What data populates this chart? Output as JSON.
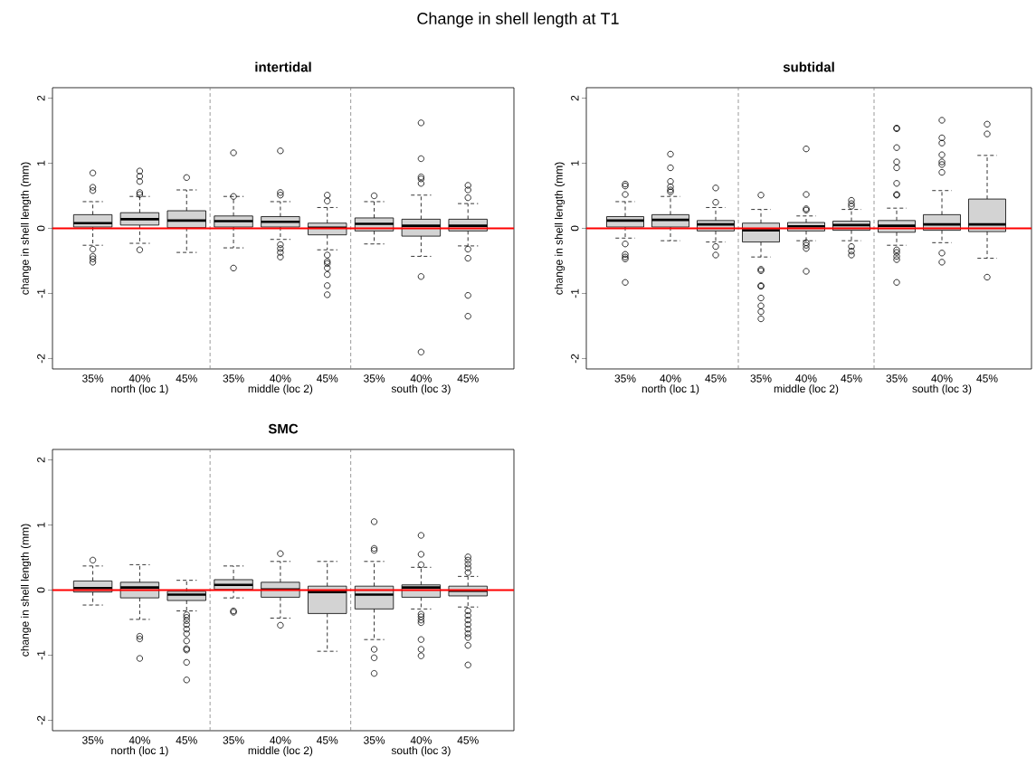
{
  "chart_data": [
    {
      "type": "box",
      "title": "intertidal",
      "ylabel": "change in shell length (mm)",
      "marker": "circle",
      "categories": [
        "35%",
        "40%",
        "45%",
        "35%",
        "40%",
        "45%",
        "35%",
        "40%",
        "45%"
      ],
      "ylim": [
        -2.16,
        2.16
      ],
      "yticks": [
        -2,
        -1,
        0,
        1,
        2
      ],
      "series": [
        {
          "color": "#d3d3d3",
          "boxes": [
            {
              "low": -0.26,
              "q1": 0.02,
              "median": 0.08,
              "q3": 0.21,
              "high": 0.41,
              "outliers": [
                0.85,
                0.63,
                0.58,
                -0.32,
                -0.43,
                -0.47,
                -0.52
              ]
            },
            {
              "low": -0.23,
              "q1": 0.05,
              "median": 0.14,
              "q3": 0.24,
              "high": 0.49,
              "outliers": [
                0.88,
                0.8,
                0.72,
                0.55,
                0.52,
                -0.33
              ]
            },
            {
              "low": -0.37,
              "q1": 0.01,
              "median": 0.12,
              "q3": 0.27,
              "high": 0.59,
              "outliers": [
                0.78
              ]
            },
            {
              "low": -0.3,
              "q1": 0.02,
              "median": 0.11,
              "q3": 0.19,
              "high": 0.49,
              "outliers": [
                1.16,
                0.49,
                -0.61
              ]
            },
            {
              "low": -0.17,
              "q1": 0.02,
              "median": 0.1,
              "q3": 0.18,
              "high": 0.41,
              "outliers": [
                1.19,
                0.55,
                0.51,
                -0.25,
                -0.31,
                -0.37,
                -0.44
              ]
            },
            {
              "low": -0.33,
              "q1": -0.1,
              "median": 0.01,
              "q3": 0.08,
              "high": 0.32,
              "outliers": [
                0.51,
                0.42,
                -0.41,
                -0.51,
                -0.54,
                -0.61,
                -0.71,
                -0.88,
                -1.02
              ]
            },
            {
              "low": -0.24,
              "q1": -0.04,
              "median": 0.07,
              "q3": 0.16,
              "high": 0.41,
              "outliers": [
                0.5
              ]
            },
            {
              "low": -0.43,
              "q1": -0.12,
              "median": 0.04,
              "q3": 0.14,
              "high": 0.51,
              "outliers": [
                1.62,
                1.07,
                0.79,
                0.76,
                0.69,
                -0.74,
                -1.9
              ]
            },
            {
              "low": -0.27,
              "q1": -0.04,
              "median": 0.04,
              "q3": 0.14,
              "high": 0.38,
              "outliers": [
                0.66,
                0.59,
                0.47,
                -0.32,
                -0.46,
                -1.03,
                -1.35
              ]
            }
          ]
        }
      ],
      "ref_lines": [
        {
          "axis": "y",
          "value": 0,
          "color": "#ff0000",
          "line_style": "solid"
        }
      ],
      "annotations": [
        "Change in shell length at T1",
        "north (loc 1)",
        "middle (loc 2)",
        "south (loc 3)"
      ]
    },
    {
      "type": "box",
      "title": "subtidal",
      "ylabel": "change in shell length (mm)",
      "marker": "circle",
      "categories": [
        "35%",
        "40%",
        "45%",
        "35%",
        "40%",
        "45%",
        "35%",
        "40%",
        "45%"
      ],
      "ylim": [
        -2.16,
        2.16
      ],
      "yticks": [
        -2,
        -1,
        0,
        1,
        2
      ],
      "series": [
        {
          "color": "#d3d3d3",
          "boxes": [
            {
              "low": -0.15,
              "q1": 0.02,
              "median": 0.12,
              "q3": 0.18,
              "high": 0.41,
              "outliers": [
                0.68,
                0.65,
                0.52,
                -0.24,
                -0.4,
                -0.44,
                -0.47,
                -0.83
              ]
            },
            {
              "low": -0.19,
              "q1": 0.02,
              "median": 0.13,
              "q3": 0.21,
              "high": 0.49,
              "outliers": [
                1.14,
                0.93,
                0.72,
                0.64,
                0.59,
                0.56
              ]
            },
            {
              "low": -0.21,
              "q1": -0.04,
              "median": 0.06,
              "q3": 0.12,
              "high": 0.32,
              "outliers": [
                0.62,
                0.4,
                -0.28,
                -0.41
              ]
            },
            {
              "low": -0.44,
              "q1": -0.21,
              "median": -0.03,
              "q3": 0.08,
              "high": 0.29,
              "outliers": [
                0.51,
                -0.63,
                -0.65,
                -0.88,
                -0.89,
                -1.07,
                -1.19,
                -1.28,
                -1.39
              ]
            },
            {
              "low": -0.19,
              "q1": -0.04,
              "median": 0.03,
              "q3": 0.09,
              "high": 0.19,
              "outliers": [
                1.22,
                0.52,
                0.3,
                0.28,
                -0.22,
                -0.26,
                -0.31,
                -0.66
              ]
            },
            {
              "low": -0.19,
              "q1": -0.03,
              "median": 0.05,
              "q3": 0.11,
              "high": 0.29,
              "outliers": [
                0.43,
                0.38,
                0.34,
                -0.28,
                -0.35,
                -0.41
              ]
            },
            {
              "low": -0.26,
              "q1": -0.06,
              "median": 0.04,
              "q3": 0.12,
              "high": 0.31,
              "outliers": [
                1.54,
                1.53,
                1.24,
                1.02,
                0.93,
                0.69,
                0.52,
                0.51,
                -0.33,
                -0.37,
                -0.43,
                -0.48,
                -0.83
              ]
            },
            {
              "low": -0.22,
              "q1": -0.03,
              "median": 0.06,
              "q3": 0.21,
              "high": 0.58,
              "outliers": [
                1.66,
                1.39,
                1.31,
                1.13,
                1.02,
                0.98,
                0.86,
                -0.38,
                -0.52
              ]
            },
            {
              "low": -0.46,
              "q1": -0.05,
              "median": 0.06,
              "q3": 0.45,
              "high": 1.12,
              "outliers": [
                1.6,
                1.45,
                -0.75
              ]
            }
          ]
        }
      ],
      "ref_lines": [
        {
          "axis": "y",
          "value": 0,
          "color": "#ff0000",
          "line_style": "solid"
        }
      ],
      "annotations": [
        "north (loc 1)",
        "middle (loc 2)",
        "south (loc 3)"
      ]
    },
    {
      "type": "box",
      "title": "SMC",
      "ylabel": "change in shell length (mm)",
      "marker": "circle",
      "categories": [
        "35%",
        "40%",
        "45%",
        "35%",
        "40%",
        "45%",
        "35%",
        "40%",
        "45%"
      ],
      "ylim": [
        -2.16,
        2.16
      ],
      "yticks": [
        -2,
        -1,
        0,
        1,
        2
      ],
      "series": [
        {
          "color": "#d3d3d3",
          "boxes": [
            {
              "low": -0.23,
              "q1": -0.03,
              "median": 0.03,
              "q3": 0.14,
              "high": 0.37,
              "outliers": [
                0.46
              ]
            },
            {
              "low": -0.45,
              "q1": -0.12,
              "median": 0.04,
              "q3": 0.12,
              "high": 0.39,
              "outliers": [
                -0.71,
                -0.75,
                -1.05
              ]
            },
            {
              "low": -0.32,
              "q1": -0.16,
              "median": -0.07,
              "q3": -0.02,
              "high": 0.15,
              "outliers": [
                -0.38,
                -0.42,
                -0.47,
                -0.53,
                -0.6,
                -0.67,
                -0.78,
                -0.9,
                -0.92,
                -1.11,
                -1.38
              ]
            },
            {
              "low": -0.12,
              "q1": 0.01,
              "median": 0.08,
              "q3": 0.16,
              "high": 0.37,
              "outliers": [
                -0.32,
                -0.34
              ]
            },
            {
              "low": -0.43,
              "q1": -0.11,
              "median": 0.01,
              "q3": 0.12,
              "high": 0.44,
              "outliers": [
                0.56,
                -0.54
              ]
            },
            {
              "low": -0.94,
              "q1": -0.36,
              "median": -0.03,
              "q3": 0.06,
              "high": 0.44
            },
            {
              "low": -0.76,
              "q1": -0.29,
              "median": -0.07,
              "q3": 0.06,
              "high": 0.44,
              "outliers": [
                1.05,
                0.64,
                0.61,
                -0.91,
                -1.04,
                -1.28
              ]
            },
            {
              "low": -0.29,
              "q1": -0.11,
              "median": 0.04,
              "q3": 0.08,
              "high": 0.35,
              "outliers": [
                0.84,
                0.55,
                0.39,
                -0.37,
                -0.41,
                -0.46,
                -0.5,
                -0.76,
                -0.91,
                -1.01
              ]
            },
            {
              "low": -0.26,
              "q1": -0.09,
              "median": -0.01,
              "q3": 0.06,
              "high": 0.21,
              "outliers": [
                0.51,
                0.46,
                0.4,
                0.34,
                0.27,
                -0.32,
                -0.39,
                -0.46,
                -0.53,
                -0.6,
                -0.67,
                -0.73,
                -0.85,
                -1.15
              ]
            }
          ]
        }
      ],
      "ref_lines": [
        {
          "axis": "y",
          "value": 0,
          "color": "#ff0000",
          "line_style": "solid"
        }
      ],
      "annotations": [
        "north (loc 1)",
        "middle (loc 2)",
        "south (loc 3)"
      ]
    }
  ]
}
